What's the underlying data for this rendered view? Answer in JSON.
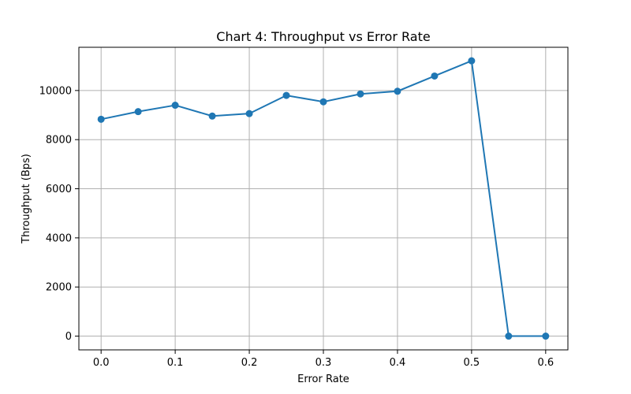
{
  "chart_data": {
    "type": "line",
    "title": "Chart 4: Throughput vs Error Rate",
    "xlabel": "Error Rate",
    "ylabel": "Throughput (Bps)",
    "xlim": [
      -0.03,
      0.63
    ],
    "ylim": [
      -560,
      11760
    ],
    "grid": true,
    "x_ticks": [
      0.0,
      0.1,
      0.2,
      0.3,
      0.4,
      0.5,
      0.6
    ],
    "x_tick_labels": [
      "0.0",
      "0.1",
      "0.2",
      "0.3",
      "0.4",
      "0.5",
      "0.6"
    ],
    "y_ticks": [
      0,
      2000,
      4000,
      6000,
      8000,
      10000
    ],
    "y_tick_labels": [
      "0",
      "2000",
      "4000",
      "6000",
      "8000",
      "10000"
    ],
    "series": [
      {
        "color": "#1f77b4",
        "x": [
          0.0,
          0.05,
          0.1,
          0.15,
          0.2,
          0.25,
          0.3,
          0.35,
          0.4,
          0.45,
          0.5,
          0.55,
          0.6
        ],
        "y": [
          8830,
          9140,
          9400,
          8960,
          9060,
          9800,
          9540,
          9860,
          9970,
          10590,
          11210,
          0,
          0
        ]
      }
    ]
  }
}
